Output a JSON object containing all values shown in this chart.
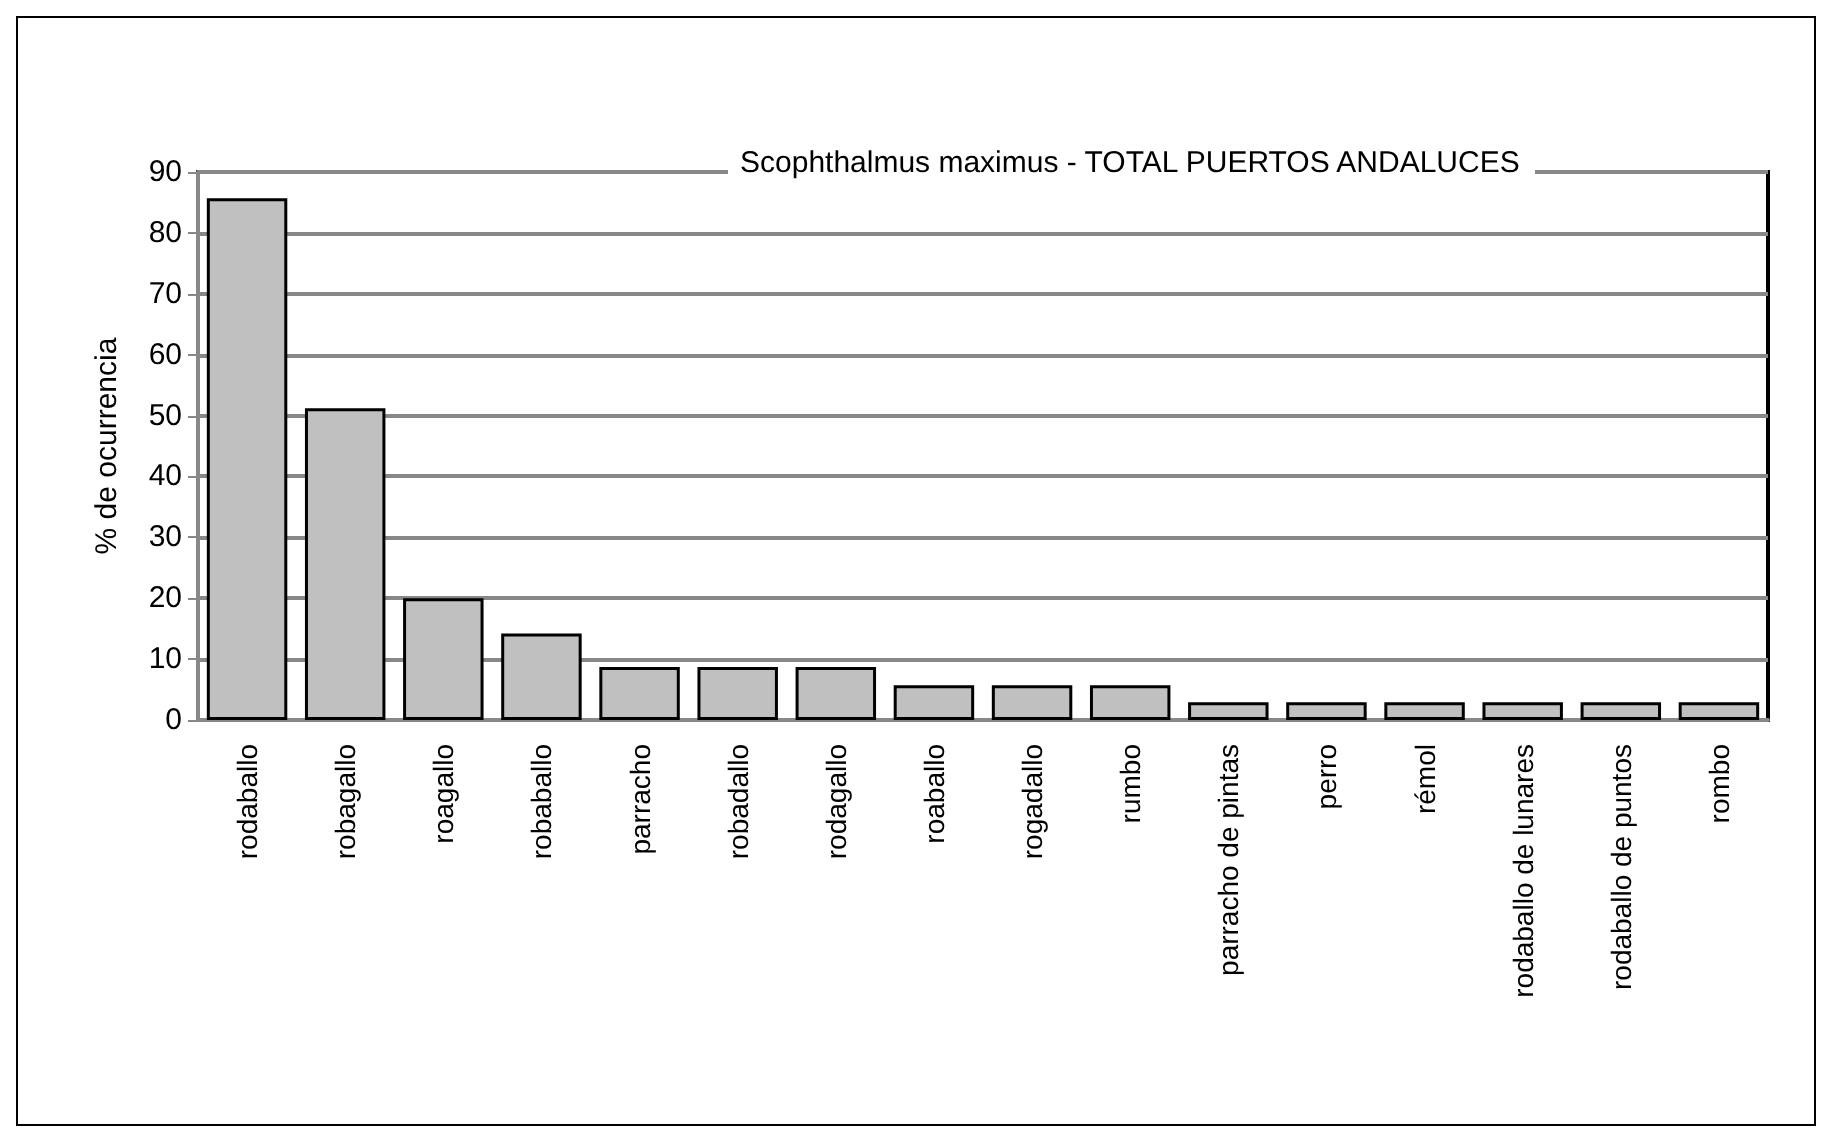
{
  "chart_data": {
    "type": "bar",
    "title": "Scophthalmus maximus - TOTAL PUERTOS ANDALUCES",
    "ylabel": "% de ocurrencia",
    "categories": [
      "rodaballo",
      "robagallo",
      "roagallo",
      "robaballo",
      "parracho",
      "robadallo",
      "rodagallo",
      "roaballo",
      "rogadallo",
      "rumbo",
      "parracho de pintas",
      "perro",
      "rémol",
      "rodaballo de lunares",
      "rodaballo de puntos",
      "rombo"
    ],
    "values": [
      85.7,
      51.2,
      20,
      14.2,
      8.7,
      8.7,
      8.7,
      5.7,
      5.7,
      5.7,
      2.9,
      2.9,
      2.9,
      2.9,
      2.9,
      2.9
    ],
    "color": "#c0c0c0",
    "ylim": [
      0,
      90
    ],
    "yticks": [
      0,
      10,
      20,
      30,
      40,
      50,
      60,
      70,
      80,
      90
    ],
    "grid": "y"
  }
}
